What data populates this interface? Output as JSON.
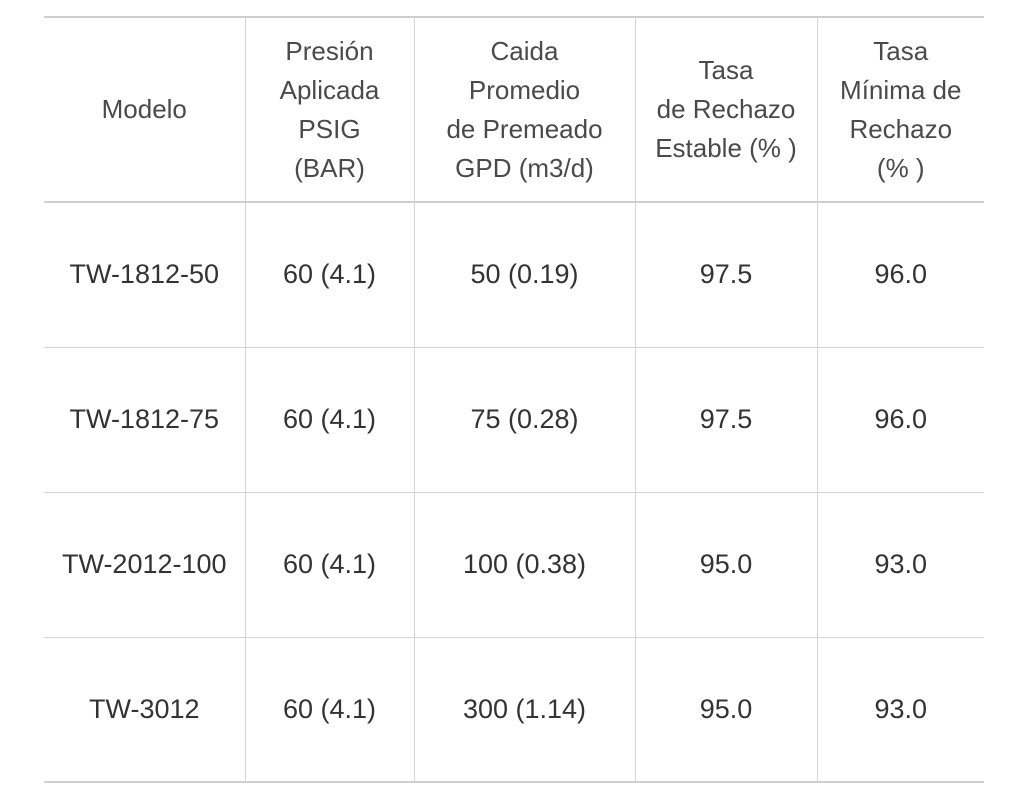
{
  "table": {
    "headers": [
      {
        "lines": [
          "Modelo"
        ]
      },
      {
        "lines": [
          "Presión",
          "Aplicada",
          "PSIG",
          "(BAR)"
        ]
      },
      {
        "lines": [
          "Caida",
          "Promedio",
          "de Premeado",
          "GPD (m3/d)"
        ]
      },
      {
        "lines": [
          "Tasa",
          "de Rechazo",
          "Estable (% )"
        ]
      },
      {
        "lines": [
          "Tasa",
          "Mínima de",
          "Rechazo",
          "(% )"
        ]
      }
    ],
    "rows": [
      [
        "TW-1812-50",
        "60 (4.1)",
        "50 (0.19)",
        "97.5",
        "96.0"
      ],
      [
        "TW-1812-75",
        "60 (4.1)",
        "75 (0.28)",
        "97.5",
        "96.0"
      ],
      [
        "TW-2012-100",
        "60 (4.1)",
        "100 (0.38)",
        "95.0",
        "93.0"
      ],
      [
        "TW-3012",
        "60 (4.1)",
        "300 (1.14)",
        "95.0",
        "93.0"
      ]
    ]
  }
}
